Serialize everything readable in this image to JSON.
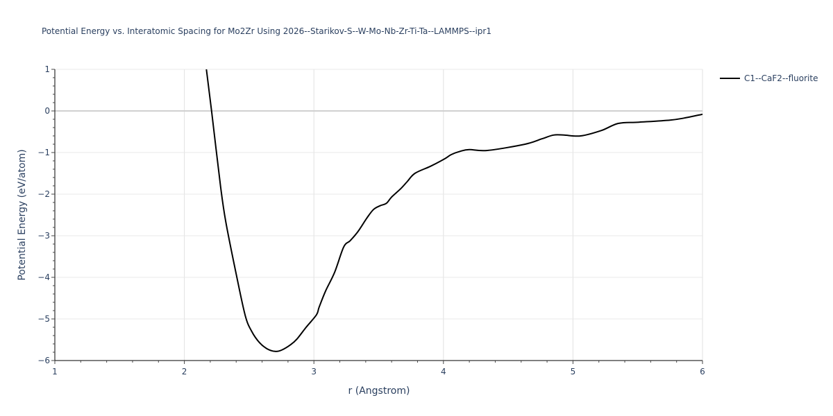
{
  "chart_data": {
    "type": "line",
    "title": "Potential Energy vs. Interatomic Spacing for Mo2Zr Using 2026--Starikov-S--W-Mo-Nb-Zr-Ti-Ta--LAMMPS--ipr1",
    "xlabel": "r (Angstrom)",
    "ylabel": "Potential Energy (eV/atom)",
    "xlim": [
      1,
      6
    ],
    "ylim": [
      -6,
      1
    ],
    "x_ticks": [
      1,
      2,
      3,
      4,
      5,
      6
    ],
    "y_ticks": [
      1,
      0,
      -1,
      -2,
      -3,
      -4,
      -5,
      -6
    ],
    "x_tick_labels": [
      "1",
      "2",
      "3",
      "4",
      "5",
      "6"
    ],
    "y_tick_labels": [
      "1",
      "0",
      "−1",
      "−2",
      "−3",
      "−4",
      "−5",
      "−6"
    ],
    "grid": true,
    "legend_position": "right-top",
    "series": [
      {
        "name": "C1--CaF2--fluorite",
        "color": "#000000",
        "x": [
          2.17,
          2.21,
          2.28,
          2.32,
          2.4,
          2.47,
          2.52,
          2.58,
          2.64,
          2.7,
          2.75,
          2.82,
          2.87,
          2.94,
          3.02,
          3.04,
          3.09,
          3.16,
          3.23,
          3.28,
          3.34,
          3.41,
          3.46,
          3.51,
          3.56,
          3.6,
          3.67,
          3.72,
          3.78,
          3.9,
          4.01,
          4.06,
          4.13,
          4.2,
          4.34,
          4.63,
          4.76,
          4.85,
          4.93,
          5.06,
          5.22,
          5.35,
          5.51,
          5.75,
          5.86,
          6.0
        ],
        "y": [
          1.0,
          0.0,
          -1.83,
          -2.67,
          -3.92,
          -4.92,
          -5.3,
          -5.57,
          -5.72,
          -5.78,
          -5.75,
          -5.62,
          -5.48,
          -5.2,
          -4.9,
          -4.72,
          -4.33,
          -3.88,
          -3.27,
          -3.12,
          -2.9,
          -2.57,
          -2.37,
          -2.28,
          -2.22,
          -2.07,
          -1.87,
          -1.7,
          -1.5,
          -1.33,
          -1.15,
          -1.05,
          -0.97,
          -0.93,
          -0.95,
          -0.8,
          -0.67,
          -0.58,
          -0.58,
          -0.6,
          -0.47,
          -0.3,
          -0.27,
          -0.22,
          -0.17,
          -0.08
        ]
      }
    ]
  }
}
